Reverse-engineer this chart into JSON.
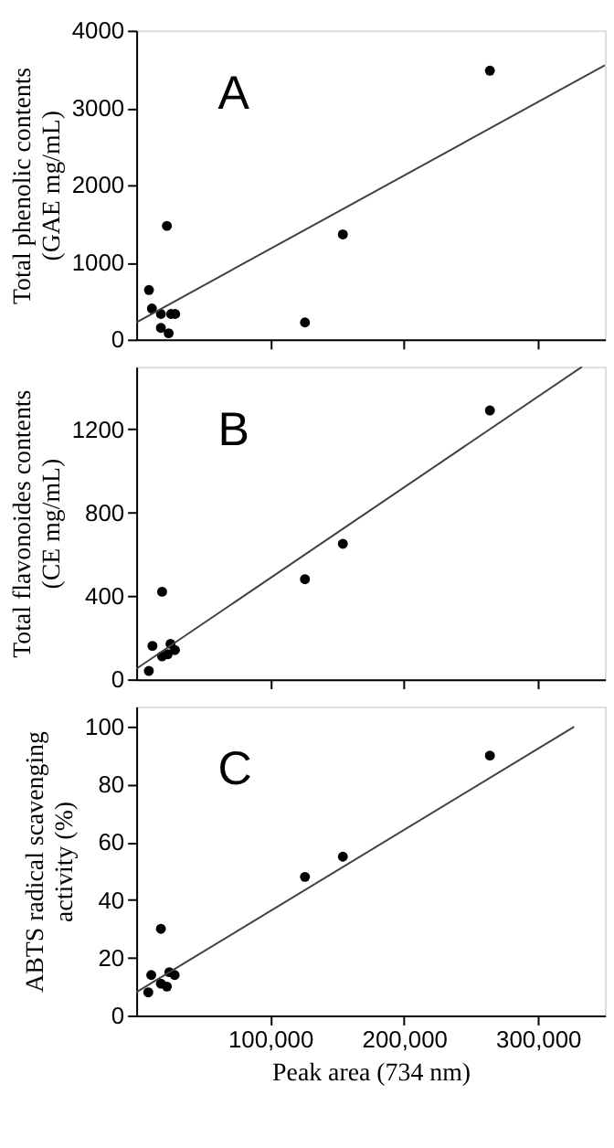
{
  "chart_data": [
    {
      "type": "scatter",
      "ylabel": "Total phenolic contents\n(GAE mg/mL)",
      "annotations": [
        "A"
      ],
      "xlim": [
        0,
        350000
      ],
      "xticks": [
        {
          "value": 100000,
          "label": null
        },
        {
          "value": 200000,
          "label": null
        },
        {
          "value": 300000,
          "label": null
        }
      ],
      "ylim": [
        0,
        4000
      ],
      "yticks": [
        0,
        1000,
        2000,
        3000,
        4000
      ],
      "tick_labels": "y",
      "grid": false,
      "series": [
        {
          "marker": "circle",
          "color": "#000000",
          "x": [
            9500,
            11700,
            18400,
            18400,
            24200,
            26000,
            29100,
            22900,
            126000,
            154300,
            264100
          ],
          "values": [
            640,
            400,
            330,
            150,
            80,
            330,
            330,
            1470,
            220,
            1360,
            3480
          ]
        },
        {
          "type": "line",
          "marker": "none",
          "color": "#404040",
          "line_style": "solid",
          "x": [
            0,
            350000
          ],
          "values": [
            220,
            3550
          ]
        }
      ]
    },
    {
      "type": "scatter",
      "ylabel": "Total flavonoides contents\n(CE mg/mL)",
      "annotations": [
        "B"
      ],
      "xlim": [
        0,
        350000
      ],
      "xticks": [
        {
          "value": 100000,
          "label": null
        },
        {
          "value": 200000,
          "label": null
        },
        {
          "value": 300000,
          "label": null
        }
      ],
      "ylim": [
        0,
        1500
      ],
      "yticks": [
        0,
        400,
        800,
        1200
      ],
      "tick_labels": "y",
      "grid": false,
      "series": [
        {
          "marker": "circle",
          "color": "#000000",
          "x": [
            9400,
            12100,
            19300,
            19300,
            23500,
            25600,
            28900
          ],
          "values": [
            40,
            160,
            420,
            110,
            120,
            170,
            140
          ]
        },
        {
          "marker": "circle",
          "color": "#000000",
          "x": [
            126000,
            154300,
            264100
          ],
          "values": [
            480,
            650,
            1290
          ]
        },
        {
          "type": "line",
          "marker": "none",
          "color": "#404040",
          "line_style": "solid",
          "x": [
            0,
            333000
          ],
          "values": [
            50,
            1500
          ]
        }
      ]
    },
    {
      "type": "scatter",
      "ylabel": "ABTS radical scavenging\nactivity (%)",
      "xlabel": "Peak area (734 nm)",
      "annotations": [
        "C"
      ],
      "xlim": [
        0,
        350000
      ],
      "xticks": [
        {
          "value": 100000,
          "label": "100,000"
        },
        {
          "value": 200000,
          "label": "200,000"
        },
        {
          "value": 300000,
          "label": "300,000"
        }
      ],
      "ylim": [
        0,
        107
      ],
      "yticks": [
        0,
        20,
        40,
        60,
        80,
        100
      ],
      "grid": false,
      "series": [
        {
          "marker": "circle",
          "color": "#000000",
          "x": [
            9000,
            11200,
            18400,
            18400,
            22900,
            24700,
            28700,
            126000,
            154300,
            264100
          ],
          "values": [
            8,
            14,
            30,
            11,
            10,
            15,
            14,
            48,
            55,
            90
          ]
        },
        {
          "type": "line",
          "marker": "none",
          "color": "#404040",
          "line_style": "solid",
          "x": [
            0,
            327000
          ],
          "values": [
            8,
            100
          ]
        }
      ]
    }
  ]
}
